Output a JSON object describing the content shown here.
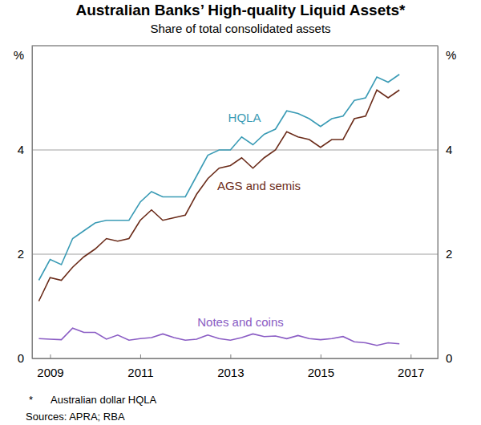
{
  "chart_data": {
    "type": "line",
    "title": "Australian Banks’ High-quality Liquid Assets*",
    "subtitle": "Share of total consolidated assets",
    "footnote_marker": "*",
    "footnote": "Australian dollar HQLA",
    "source": "Sources: APRA; RBA",
    "x": [
      2008.75,
      2009,
      2009.25,
      2009.5,
      2009.75,
      2010,
      2010.25,
      2010.5,
      2010.75,
      2011,
      2011.25,
      2011.5,
      2011.75,
      2012,
      2012.25,
      2012.5,
      2012.75,
      2013,
      2013.25,
      2013.5,
      2013.75,
      2014,
      2014.25,
      2014.5,
      2014.75,
      2015,
      2015.25,
      2015.5,
      2015.75,
      2016,
      2016.25,
      2016.5,
      2016.75
    ],
    "series": [
      {
        "name": "HQLA",
        "color": "#3a9bb5",
        "values": [
          1.5,
          1.9,
          1.8,
          2.3,
          2.45,
          2.6,
          2.65,
          2.65,
          2.65,
          3.0,
          3.2,
          3.1,
          3.1,
          3.1,
          3.5,
          3.9,
          4.0,
          4.0,
          4.25,
          4.1,
          4.3,
          4.4,
          4.75,
          4.7,
          4.6,
          4.45,
          4.6,
          4.65,
          4.95,
          5.0,
          5.4,
          5.3,
          5.45
        ]
      },
      {
        "name": "AGS and semis",
        "color": "#6b2c1a",
        "values": [
          1.1,
          1.55,
          1.5,
          1.75,
          1.95,
          2.1,
          2.3,
          2.25,
          2.3,
          2.65,
          2.85,
          2.65,
          2.7,
          2.75,
          3.15,
          3.45,
          3.65,
          3.7,
          3.85,
          3.65,
          3.85,
          4.0,
          4.35,
          4.25,
          4.2,
          4.05,
          4.2,
          4.2,
          4.6,
          4.65,
          5.15,
          5.0,
          5.15
        ]
      },
      {
        "name": "Notes and coins",
        "color": "#8a5cc4",
        "values": [
          0.38,
          0.37,
          0.36,
          0.58,
          0.5,
          0.5,
          0.37,
          0.45,
          0.35,
          0.38,
          0.4,
          0.47,
          0.4,
          0.35,
          0.37,
          0.45,
          0.38,
          0.35,
          0.4,
          0.47,
          0.42,
          0.43,
          0.38,
          0.44,
          0.38,
          0.36,
          0.38,
          0.42,
          0.32,
          0.3,
          0.25,
          0.3,
          0.28
        ]
      }
    ],
    "xlim": [
      2008.6,
      2017.6
    ],
    "xticks": [
      2009,
      2011,
      2013,
      2015,
      2017
    ],
    "ylim": [
      0,
      6
    ],
    "yticks": [
      0,
      2,
      4,
      {
        "value": 6,
        "label": "%"
      }
    ],
    "grid": true
  }
}
